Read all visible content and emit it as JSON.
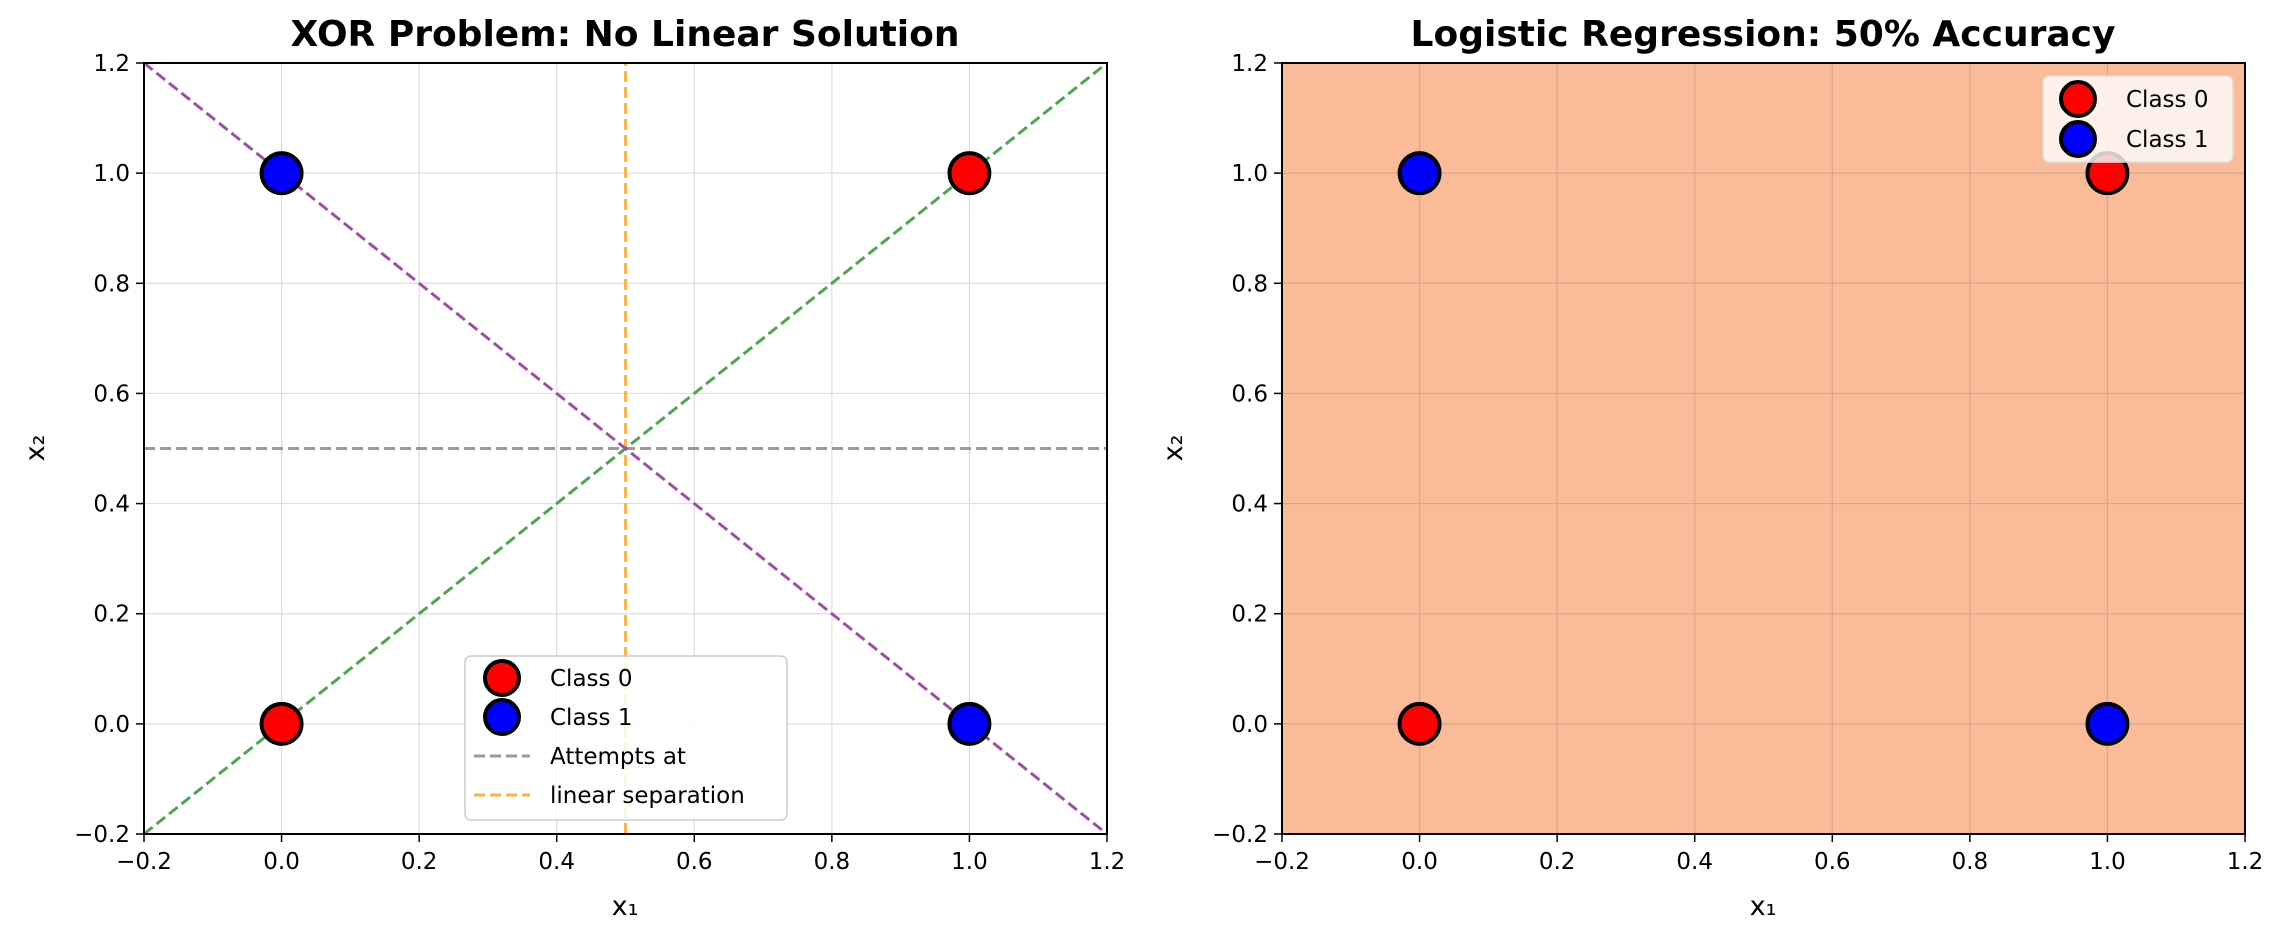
{
  "chart_data": [
    {
      "type": "scatter",
      "title": "XOR Problem: No Linear Solution",
      "xlabel": "x₁",
      "ylabel": "x₂",
      "xlim": [
        -0.2,
        1.2
      ],
      "ylim": [
        -0.2,
        1.2
      ],
      "xticks": [
        "−0.2",
        "0.0",
        "0.2",
        "0.4",
        "0.6",
        "0.8",
        "1.0",
        "1.2"
      ],
      "yticks": [
        "−0.2",
        "0.0",
        "0.2",
        "0.4",
        "0.6",
        "0.8",
        "1.0",
        "1.2"
      ],
      "grid": true,
      "background": "#ffffff",
      "legend_position": "bottom-center",
      "series": [
        {
          "name": "Class 0",
          "color": "#ff0000",
          "points": [
            [
              0,
              0
            ],
            [
              1,
              1
            ]
          ]
        },
        {
          "name": "Class 1",
          "color": "#0000ff",
          "points": [
            [
              0,
              1
            ],
            [
              1,
              0
            ]
          ]
        }
      ],
      "lines": [
        {
          "label": "Attempts at",
          "color": "#999999",
          "points": [
            [
              -0.2,
              0.5
            ],
            [
              1.2,
              0.5
            ]
          ]
        },
        {
          "label": "linear separation",
          "color": "#ffb347",
          "points": [
            [
              0.5,
              -0.2
            ],
            [
              0.5,
              1.2
            ]
          ]
        },
        {
          "label": "",
          "color": "#4ca64c",
          "points": [
            [
              -0.2,
              -0.2
            ],
            [
              1.2,
              1.2
            ]
          ]
        },
        {
          "label": "",
          "color": "#a04ca6",
          "points": [
            [
              -0.2,
              1.2
            ],
            [
              1.2,
              -0.2
            ]
          ]
        }
      ]
    },
    {
      "type": "scatter",
      "title": "Logistic Regression: 50% Accuracy",
      "xlabel": "x₁",
      "ylabel": "x₂",
      "xlim": [
        -0.2,
        1.2
      ],
      "ylim": [
        -0.2,
        1.2
      ],
      "xticks": [
        "−0.2",
        "0.0",
        "0.2",
        "0.4",
        "0.6",
        "0.8",
        "1.0",
        "1.2"
      ],
      "yticks": [
        "−0.2",
        "0.0",
        "0.2",
        "0.4",
        "0.6",
        "0.8",
        "1.0",
        "1.2"
      ],
      "grid": true,
      "background": "#f9bb98",
      "legend_position": "top-right",
      "series": [
        {
          "name": "Class 0",
          "color": "#ff0000",
          "points": [
            [
              0,
              0
            ],
            [
              1,
              1
            ]
          ]
        },
        {
          "name": "Class 1",
          "color": "#0000ff",
          "points": [
            [
              0,
              1
            ],
            [
              1,
              0
            ]
          ]
        }
      ],
      "lines": []
    }
  ]
}
